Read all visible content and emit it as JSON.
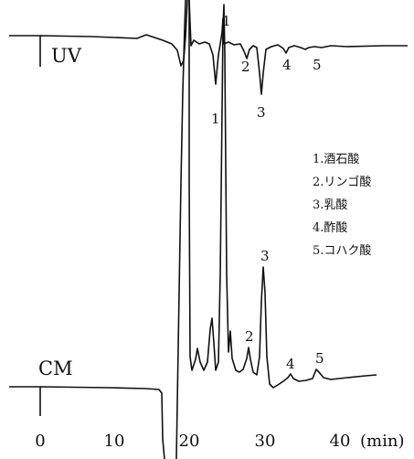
{
  "chart_data": {
    "type": "line",
    "title": "",
    "xlabel": "(min)",
    "xlim": [
      0,
      45
    ],
    "x_ticks": [
      "0",
      "10",
      "20",
      "30",
      "40"
    ],
    "grid": false,
    "series": [
      {
        "name": "UV",
        "peaks": [
          {
            "label": "1",
            "x": 23.2
          },
          {
            "label": "2",
            "x": 27.7
          },
          {
            "label": "3",
            "x": 29.2
          },
          {
            "label": "4",
            "x": 32.9
          },
          {
            "label": "5",
            "x": 36.6
          }
        ]
      },
      {
        "name": "CM",
        "peaks": [
          {
            "label": "1",
            "x": 24.1
          },
          {
            "label": "2",
            "x": 27.5
          },
          {
            "label": "3",
            "x": 29.5
          },
          {
            "label": "4",
            "x": 33.2
          },
          {
            "label": "5",
            "x": 37.0
          }
        ]
      }
    ],
    "legend": {
      "placement": "right",
      "entries": [
        "1.酒石酸",
        "2.リンゴ酸",
        "3.乳酸",
        "4.酢酸",
        "5.コハク酸"
      ]
    }
  }
}
